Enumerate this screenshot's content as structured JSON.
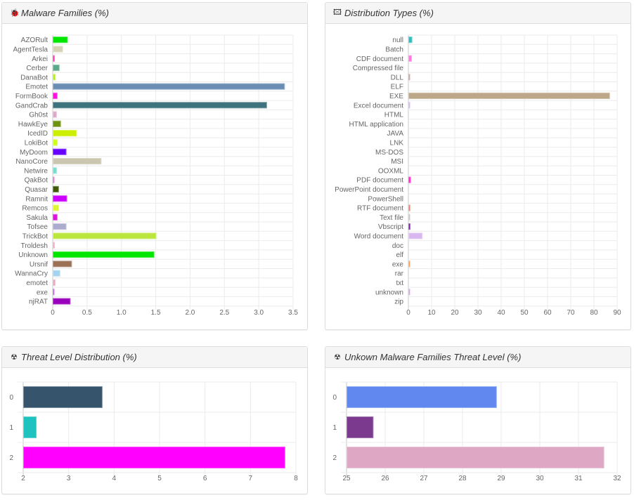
{
  "panels": {
    "malware_families": {
      "title": "Malware Families (%)",
      "icon": "bug-icon",
      "glyph": "🐞"
    },
    "distribution_types": {
      "title": "Distribution Types (%)",
      "icon": "image-icon",
      "glyph": "🖾"
    },
    "threat_level": {
      "title": "Threat Level Distribution (%)",
      "icon": "radiation-icon",
      "glyph": "☢"
    },
    "unknown_threat_level": {
      "title": "Unkown Malware Families Threat Level (%)",
      "icon": "radiation-icon",
      "glyph": "☢"
    }
  },
  "chart_data": [
    {
      "type": "bar",
      "orientation": "horizontal",
      "title": "Malware Families (%)",
      "xlabel": "",
      "ylabel": "",
      "xlim": [
        0,
        3.5
      ],
      "xticks": [
        "0",
        "0.5",
        "1.0",
        "1.5",
        "2.0",
        "2.5",
        "3.0",
        "3.5"
      ],
      "grid": true,
      "categories": [
        "AZORult",
        "AgentTesla",
        "Arkei",
        "Cerber",
        "DanaBot",
        "Emotet",
        "FormBook",
        "GandCrab",
        "Gh0st",
        "HawkEye",
        "IcedID",
        "LokiBot",
        "MyDoom",
        "NanoCore",
        "Netwire",
        "QakBot",
        "Quasar",
        "Ramnit",
        "Remcos",
        "Sakula",
        "Tofsee",
        "TrickBot",
        "Troldesh",
        "Unknown",
        "Ursnif",
        "WannaCry",
        "emotet",
        "exe",
        "njRAT"
      ],
      "values": [
        0.21,
        0.14,
        0.02,
        0.09,
        0.03,
        3.37,
        0.06,
        3.11,
        0.05,
        0.11,
        0.34,
        0.06,
        0.19,
        0.7,
        0.05,
        0.01,
        0.08,
        0.2,
        0.08,
        0.06,
        0.19,
        1.5,
        0.02,
        1.47,
        0.27,
        0.1,
        0.03,
        0.01,
        0.25
      ],
      "colors": [
        "#00e600",
        "#d6d2b5",
        "#ff33aa",
        "#5aaa8a",
        "#b3ee22",
        "#6a8eb3",
        "#ff11dd",
        "#3d737c",
        "#dda8c8",
        "#6e9210",
        "#ccee00",
        "#ccff11",
        "#6600ff",
        "#cbc6af",
        "#77ddcc",
        "#cc66cc",
        "#3e5a06",
        "#cc00ff",
        "#ddf533",
        "#dd11dd",
        "#acacce",
        "#bbe63e",
        "#e6a8c0",
        "#00e600",
        "#9b7055",
        "#a3d3ee",
        "#e5a8be",
        "#b855d0",
        "#9900bb"
      ]
    },
    {
      "type": "bar",
      "orientation": "horizontal",
      "title": "Distribution Types (%)",
      "xlabel": "",
      "ylabel": "",
      "xlim": [
        0,
        90
      ],
      "xticks": [
        "0",
        "10",
        "20",
        "30",
        "40",
        "50",
        "60",
        "70",
        "80",
        "90"
      ],
      "grid": true,
      "categories": [
        "null",
        "Batch",
        "CDF document",
        "Compressed file",
        "DLL",
        "ELF",
        "EXE",
        "Excel document",
        "HTML",
        "HTML application",
        "JAVA",
        "LNK",
        "MS-DOS",
        "MSI",
        "OOXML",
        "PDF document",
        "PowerPoint document",
        "PowerShell",
        "RTF document",
        "Text file",
        "Vbscript",
        "Word document",
        "doc",
        "elf",
        "exe",
        "rar",
        "txt",
        "unknown",
        "zip"
      ],
      "values": [
        1.4,
        0,
        1.2,
        0,
        0.3,
        0,
        86.6,
        0.3,
        0,
        0,
        0,
        0,
        0,
        0,
        0,
        0.8,
        0,
        0,
        0.6,
        0.3,
        0.6,
        5.8,
        0,
        0,
        0.5,
        0,
        0,
        0.4,
        0
      ],
      "colors": [
        "#33bbbb",
        "#cccccc",
        "#ff77dd",
        "#cccccc",
        "#bb9988",
        "#cccccc",
        "#bca888",
        "#ccaadd",
        "#cccccc",
        "#cccccc",
        "#cccccc",
        "#cccccc",
        "#cccccc",
        "#cccccc",
        "#cccccc",
        "#ff22cc",
        "#cccccc",
        "#cccccc",
        "#dd8877",
        "#bbbbbb",
        "#7722aa",
        "#d8b8ee",
        "#cccccc",
        "#cccccc",
        "#ee9955",
        "#cccccc",
        "#cccccc",
        "#cc99dd",
        "#cccccc"
      ]
    },
    {
      "type": "bar",
      "orientation": "horizontal",
      "title": "Threat Level Distribution (%)",
      "xlabel": "",
      "ylabel": "",
      "xlim": [
        2,
        8
      ],
      "xticks": [
        "2",
        "3",
        "4",
        "5",
        "6",
        "7",
        "8"
      ],
      "grid": true,
      "categories": [
        "0",
        "1",
        "2"
      ],
      "values": [
        3.73,
        2.28,
        7.75
      ],
      "colors": [
        "#36556d",
        "#1ec2be",
        "#ff00ff"
      ]
    },
    {
      "type": "bar",
      "orientation": "horizontal",
      "title": "Unkown Malware Families Threat Level (%)",
      "xlabel": "",
      "ylabel": "",
      "xlim": [
        25,
        32
      ],
      "xticks": [
        "25",
        "26",
        "27",
        "28",
        "29",
        "30",
        "31",
        "32"
      ],
      "grid": true,
      "categories": [
        "0",
        "1",
        "2"
      ],
      "values": [
        28.87,
        25.68,
        31.65
      ],
      "colors": [
        "#6088ef",
        "#7b3a8e",
        "#dea8c4"
      ]
    }
  ]
}
